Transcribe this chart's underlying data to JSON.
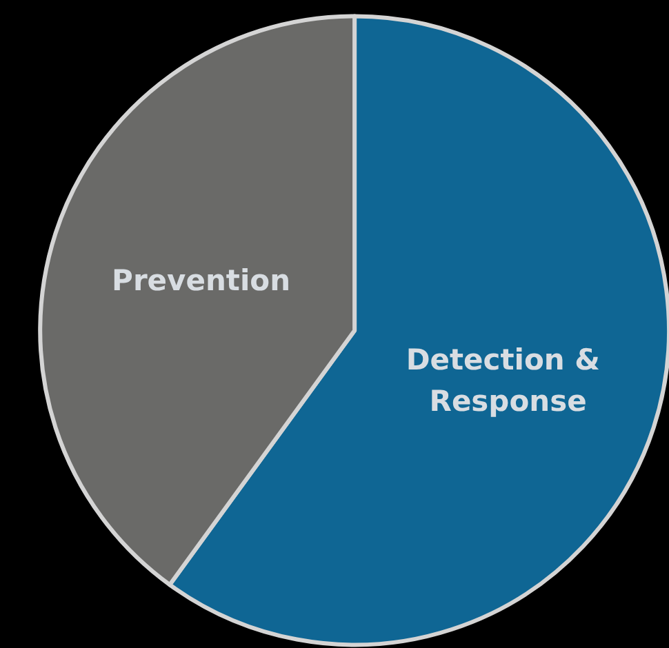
{
  "chart_data": {
    "type": "pie",
    "categories": [
      "Detection & Response",
      "Prevention"
    ],
    "values": [
      60,
      40
    ],
    "colors": [
      "#0f6694",
      "#6a6a68"
    ],
    "legend": false
  }
}
